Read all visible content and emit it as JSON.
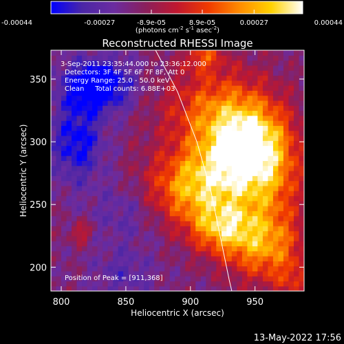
{
  "chart_data": {
    "type": "heatmap",
    "title": "Reconstructed RHESSI Image",
    "xlabel": "Heliocentric X (arcsec)",
    "ylabel": "Heliocentric Y (arcsec)",
    "xlim": [
      792,
      988
    ],
    "ylim": [
      181,
      373
    ],
    "xticks": [
      800,
      850,
      900,
      950
    ],
    "yticks": [
      200,
      250,
      300,
      350
    ],
    "grid": false,
    "colorbar": {
      "position": "top",
      "ticks": [
        "-0.00044",
        "-0.00027",
        "-8.9e-05",
        "8.9e-05",
        "0.00027",
        "0.00044"
      ],
      "tick_values": [
        -0.00044,
        -0.00027,
        -8.9e-05,
        8.9e-05,
        0.00027,
        0.00044
      ],
      "unit_label": "(photons cm",
      "unit_sup1": "-2",
      "unit_mid": " s",
      "unit_sup2": "-1",
      "unit_end": " asec",
      "unit_sup3": "-2",
      "unit_close": ")",
      "colormap": [
        "#0000ff",
        "#4b26a6",
        "#6b2ca0",
        "#8a1f5c",
        "#c0172f",
        "#f03a00",
        "#ff8c00",
        "#ffd200",
        "#ffffff"
      ]
    },
    "annotations": [
      "3-Sep-2011 23:35:44.000 to 23:36:12.000",
      "Detectors: 3F 4F 5F 6F 7F 8F, Att 0",
      "Energy Range: 25.0 - 50.0 keV",
      "Clean     Total counts: 6.88E+03"
    ],
    "peak_label": "Position of Peak = [911,368]",
    "peak": [
      911,
      368
    ],
    "limb_curve": [
      [
        873,
        373
      ],
      [
        890,
        340
      ],
      [
        905,
        300
      ],
      [
        916,
        260
      ],
      [
        924,
        220
      ],
      [
        930,
        190
      ],
      [
        932,
        181
      ]
    ],
    "emission_sources": [
      {
        "x": 920,
        "y": 325,
        "sx": 30,
        "sy": 26,
        "amp": 0.0003
      },
      {
        "x": 945,
        "y": 300,
        "sx": 22,
        "sy": 22,
        "amp": 0.00042
      },
      {
        "x": 900,
        "y": 262,
        "sx": 26,
        "sy": 20,
        "amp": 0.00034
      },
      {
        "x": 925,
        "y": 232,
        "sx": 18,
        "sy": 14,
        "amp": 0.00036
      },
      {
        "x": 935,
        "y": 275,
        "sx": 30,
        "sy": 22,
        "amp": 0.00025
      },
      {
        "x": 955,
        "y": 215,
        "sx": 24,
        "sy": 18,
        "amp": 0.00026
      },
      {
        "x": 962,
        "y": 250,
        "sx": 18,
        "sy": 40,
        "amp": 0.0002
      },
      {
        "x": 910,
        "y": 368,
        "sx": 10,
        "sy": 8,
        "amp": 0.00022
      },
      {
        "x": 815,
        "y": 228,
        "sx": 6,
        "sy": 6,
        "amp": 0.00018
      },
      {
        "x": 980,
        "y": 190,
        "sx": 10,
        "sy": 10,
        "amp": 0.00015
      },
      {
        "x": 828,
        "y": 345,
        "sx": 18,
        "sy": 14,
        "amp": -0.00042
      },
      {
        "x": 812,
        "y": 300,
        "sx": 14,
        "sy": 22,
        "amp": -0.00028
      },
      {
        "x": 850,
        "y": 245,
        "sx": 18,
        "sy": 18,
        "amp": -0.00012
      },
      {
        "x": 848,
        "y": 195,
        "sx": 16,
        "sy": 14,
        "amp": -0.00012
      }
    ]
  },
  "footer": {
    "date_label": "13-May-2022 17:56"
  }
}
